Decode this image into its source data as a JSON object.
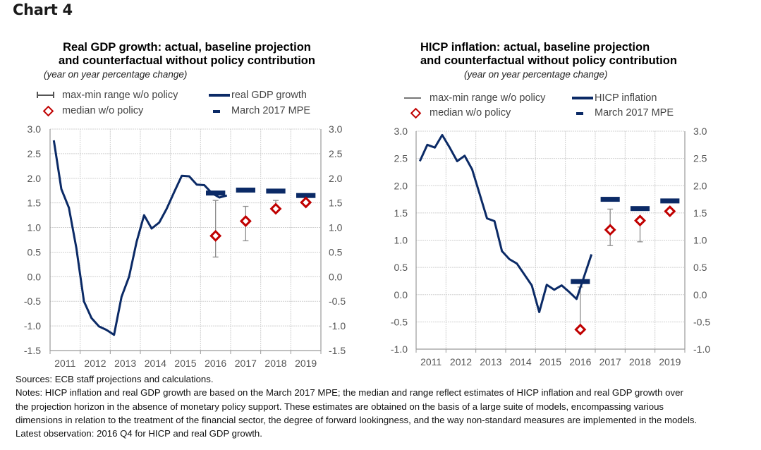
{
  "page": {
    "title": "Chart 4",
    "notes": {
      "sources": "Sources: ECB staff projections and calculations.",
      "lines": [
        "Notes: HICP inflation and real GDP growth are based on the March 2017 MPE; the median and range reflect estimates of HICP inflation and real GDP growth over",
        "the projection horizon in the absence of monetary policy support. These estimates are obtained on the basis of a large suite of models, encompassing various",
        "dimensions in relation to the treatment of the financial sector, the degree of forward lookingness, and the way non-standard measures are implemented in the models."
      ],
      "latest": "Latest observation: 2016 Q4 for HICP and real GDP growth."
    }
  },
  "colors": {
    "line": "#0b2a66",
    "median": "#c00000",
    "range": "#8c8c8c",
    "grid": "#d0d0d0",
    "axis": "#9a9a9a",
    "tick_text": "#555555"
  },
  "chart_data": [
    {
      "id": "gdp",
      "type": "line",
      "title_lines": [
        "Real GDP growth: actual, baseline projection",
        "and counterfactual without policy contribution"
      ],
      "subtitle": "(year on year percentage change)",
      "legend": {
        "range": "max-min range w/o policy",
        "median": "median w/o policy",
        "line": "real GDP growth",
        "mpe": "March 2017 MPE"
      },
      "xlabel": "",
      "ylabel": "",
      "categories": [
        "2011",
        "2012",
        "2013",
        "2014",
        "2015",
        "2016",
        "2017",
        "2018",
        "2019"
      ],
      "ylim": [
        -1.5,
        3.0
      ],
      "yticks": [
        "3.0",
        "2.5",
        "2.0",
        "1.5",
        "1.0",
        "0.5",
        "0.0",
        "-0.5",
        "-1.0",
        "-1.5"
      ],
      "ytick_values": [
        3.0,
        2.5,
        2.0,
        1.5,
        1.0,
        0.5,
        0.0,
        -0.5,
        -1.0,
        -1.5
      ],
      "grid": true,
      "series": [
        {
          "name": "real GDP growth",
          "kind": "quarterly-line",
          "x_quarters": [
            "2011Q1",
            "2011Q2",
            "2011Q3",
            "2011Q4",
            "2012Q1",
            "2012Q2",
            "2012Q3",
            "2012Q4",
            "2013Q1",
            "2013Q2",
            "2013Q3",
            "2013Q4",
            "2014Q1",
            "2014Q2",
            "2014Q3",
            "2014Q4",
            "2015Q1",
            "2015Q2",
            "2015Q3",
            "2015Q4",
            "2016Q1",
            "2016Q2",
            "2016Q3",
            "2016Q4"
          ],
          "values": [
            2.77,
            1.78,
            1.4,
            0.58,
            -0.5,
            -0.84,
            -1.01,
            -1.08,
            -1.18,
            -0.41,
            0.0,
            0.71,
            1.25,
            0.98,
            1.1,
            1.38,
            1.72,
            2.05,
            2.04,
            1.87,
            1.86,
            1.7,
            1.61,
            1.65
          ]
        },
        {
          "name": "March 2017 MPE",
          "kind": "annual-dash",
          "years": [
            "2016",
            "2017",
            "2018",
            "2019"
          ],
          "values": [
            1.7,
            1.76,
            1.74,
            1.65
          ]
        },
        {
          "name": "median w/o policy",
          "kind": "annual-marker",
          "years": [
            "2016",
            "2017",
            "2018",
            "2019"
          ],
          "values": [
            0.83,
            1.13,
            1.38,
            1.51
          ]
        },
        {
          "name": "max-min range w/o policy",
          "kind": "annual-range",
          "years": [
            "2016",
            "2017",
            "2018"
          ],
          "min": [
            0.4,
            0.73,
            1.38
          ],
          "max": [
            1.55,
            1.43,
            1.55
          ]
        }
      ]
    },
    {
      "id": "hicp",
      "type": "line",
      "title_lines": [
        "HICP inflation: actual, baseline projection",
        "and counterfactual without policy contribution"
      ],
      "subtitle": "(year on year percentage change)",
      "legend": {
        "range": "max-min range w/o policy",
        "median": "median w/o policy",
        "line": "HICP inflation",
        "mpe": "March 2017 MPE"
      },
      "xlabel": "",
      "ylabel": "",
      "categories": [
        "2011",
        "2012",
        "2013",
        "2014",
        "2015",
        "2016",
        "2017",
        "2018",
        "2019"
      ],
      "ylim": [
        -1.0,
        3.0
      ],
      "yticks": [
        "3.0",
        "2.5",
        "2.0",
        "1.5",
        "1.0",
        "0.5",
        "0.0",
        "-0.5",
        "-1.0"
      ],
      "ytick_values": [
        3.0,
        2.5,
        2.0,
        1.5,
        1.0,
        0.5,
        0.0,
        -0.5,
        -1.0
      ],
      "grid": true,
      "series": [
        {
          "name": "HICP inflation",
          "kind": "quarterly-line",
          "x_quarters": [
            "2011Q1",
            "2011Q2",
            "2011Q3",
            "2011Q4",
            "2012Q1",
            "2012Q2",
            "2012Q3",
            "2012Q4",
            "2013Q1",
            "2013Q2",
            "2013Q3",
            "2013Q4",
            "2014Q1",
            "2014Q2",
            "2014Q3",
            "2014Q4",
            "2015Q1",
            "2015Q2",
            "2015Q3",
            "2015Q4",
            "2016Q1",
            "2016Q2",
            "2016Q3",
            "2016Q4"
          ],
          "values": [
            2.45,
            2.75,
            2.7,
            2.93,
            2.7,
            2.45,
            2.55,
            2.3,
            1.85,
            1.4,
            1.35,
            0.8,
            0.65,
            0.57,
            0.37,
            0.17,
            -0.32,
            0.18,
            0.09,
            0.17,
            0.05,
            -0.08,
            0.33,
            0.74
          ]
        },
        {
          "name": "March 2017 MPE",
          "kind": "annual-dash",
          "years": [
            "2016",
            "2017",
            "2018",
            "2019"
          ],
          "values": [
            0.24,
            1.75,
            1.58,
            1.72
          ]
        },
        {
          "name": "median w/o policy",
          "kind": "annual-marker",
          "years": [
            "2016",
            "2017",
            "2018",
            "2019"
          ],
          "values": [
            -0.64,
            1.19,
            1.36,
            1.53
          ]
        },
        {
          "name": "max-min range w/o policy",
          "kind": "annual-range",
          "years": [
            "2016",
            "2017",
            "2018"
          ],
          "min": [
            -0.68,
            0.9,
            0.97
          ],
          "max": [
            0.14,
            1.57,
            1.36
          ]
        }
      ]
    }
  ]
}
